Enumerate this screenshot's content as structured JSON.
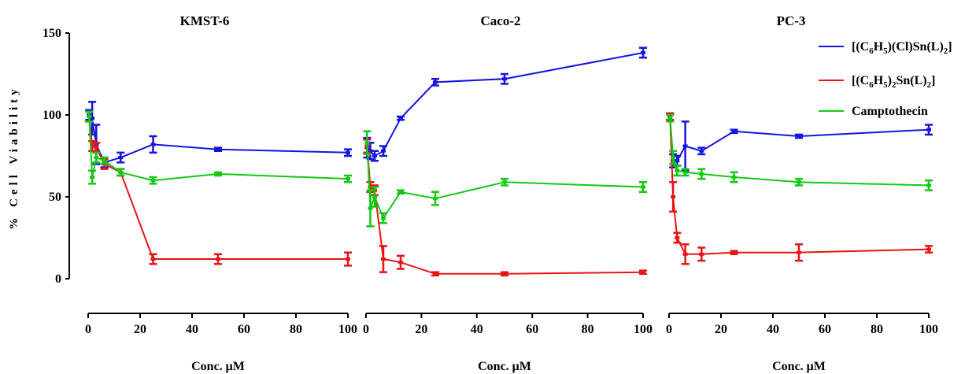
{
  "chart_data": {
    "type": "line",
    "ylabel": "% Cell Viability",
    "ylim": [
      0,
      150
    ],
    "yticks": [
      "0",
      "50",
      "100",
      "150"
    ],
    "xlim": [
      0,
      100
    ],
    "xticks": [
      "0",
      "20",
      "40",
      "60",
      "80",
      "100"
    ],
    "legend": {
      "placement": "top-right",
      "entries": [
        {
          "parts": [
            "[(C",
            "6",
            "H",
            "5",
            ")(Cl)Sn(L)",
            "2",
            "]"
          ],
          "color": "#1414e0"
        },
        {
          "parts": [
            "[(C",
            "6",
            "H",
            "5",
            ")",
            "2",
            "Sn(L)",
            "2",
            "]"
          ],
          "color": "#e81414"
        },
        {
          "parts": [
            "Camptothecin"
          ],
          "color": "#14c814"
        }
      ]
    },
    "panels": [
      {
        "title": "KMST-6",
        "xlabel": "Conc. μM",
        "series": [
          {
            "color": "#1414e0",
            "x": [
              0.39,
              1.56,
              3.13,
              6.25,
              12.5,
              25,
              50,
              100
            ],
            "y": [
              100,
              98,
              82,
              71,
              74,
              82,
              79,
              77
            ],
            "err": [
              3,
              10,
              12,
              3,
              3,
              5,
              1,
              2
            ]
          },
          {
            "color": "#e81414",
            "x": [
              0.39,
              1.56,
              3.13,
              6.25,
              12.5,
              25,
              50,
              100
            ],
            "y": [
              99,
              81,
              80,
              70,
              65,
              12,
              12,
              12
            ],
            "err": [
              3,
              3,
              3,
              3,
              2,
              3,
              3,
              4
            ]
          },
          {
            "color": "#14c814",
            "x": [
              0.39,
              1.56,
              3.13,
              6.25,
              12.5,
              25,
              50,
              100
            ],
            "y": [
              99,
              62,
              74,
              72,
              65,
              60,
              64,
              61
            ],
            "err": [
              3,
              4,
              3,
              2,
              2,
              2,
              1,
              2
            ]
          }
        ]
      },
      {
        "title": "Caco-2",
        "xlabel": "Conc. μM",
        "series": [
          {
            "color": "#1414e0",
            "x": [
              0.39,
              1.56,
              3.13,
              6.25,
              12.5,
              25,
              50,
              100
            ],
            "y": [
              80,
              78,
              75,
              78,
              98,
              120,
              122,
              138
            ],
            "err": [
              6,
              5,
              3,
              3,
              1,
              2,
              3,
              3
            ]
          },
          {
            "color": "#e81414",
            "x": [
              0.39,
              1.56,
              3.13,
              6.25,
              12.5,
              25,
              50,
              100
            ],
            "y": [
              81,
              56,
              54,
              12,
              10,
              3,
              3,
              4
            ],
            "err": [
              4,
              3,
              3,
              8,
              4,
              1,
              1,
              1
            ]
          },
          {
            "color": "#14c814",
            "x": [
              0.39,
              1.56,
              3.13,
              6.25,
              12.5,
              25,
              50,
              100
            ],
            "y": [
              83,
              43,
              50,
              37,
              53,
              49,
              59,
              56
            ],
            "err": [
              7,
              11,
              6,
              3,
              1,
              4,
              2,
              3
            ]
          }
        ]
      },
      {
        "title": "PC-3",
        "xlabel": "Conc. μM",
        "series": [
          {
            "color": "#1414e0",
            "x": [
              0.39,
              1.56,
              3.13,
              6.25,
              12.5,
              25,
              50,
              100
            ],
            "y": [
              99,
              72,
              72,
              81,
              78,
              90,
              87,
              91
            ],
            "err": [
              2,
              4,
              3,
              15,
              2,
              1,
              1,
              3
            ]
          },
          {
            "color": "#e81414",
            "x": [
              0.39,
              1.56,
              3.13,
              6.25,
              12.5,
              25,
              50,
              100
            ],
            "y": [
              99,
              50,
              25,
              15,
              15,
              16,
              16,
              18
            ],
            "err": [
              2,
              9,
              3,
              6,
              4,
              1,
              5,
              2
            ]
          },
          {
            "color": "#14c814",
            "x": [
              0.39,
              1.56,
              3.13,
              6.25,
              12.5,
              25,
              50,
              100
            ],
            "y": [
              98,
              74,
              66,
              65,
              64,
              62,
              59,
              57
            ],
            "err": [
              2,
              4,
              3,
              2,
              3,
              3,
              2,
              3
            ]
          }
        ]
      }
    ]
  }
}
